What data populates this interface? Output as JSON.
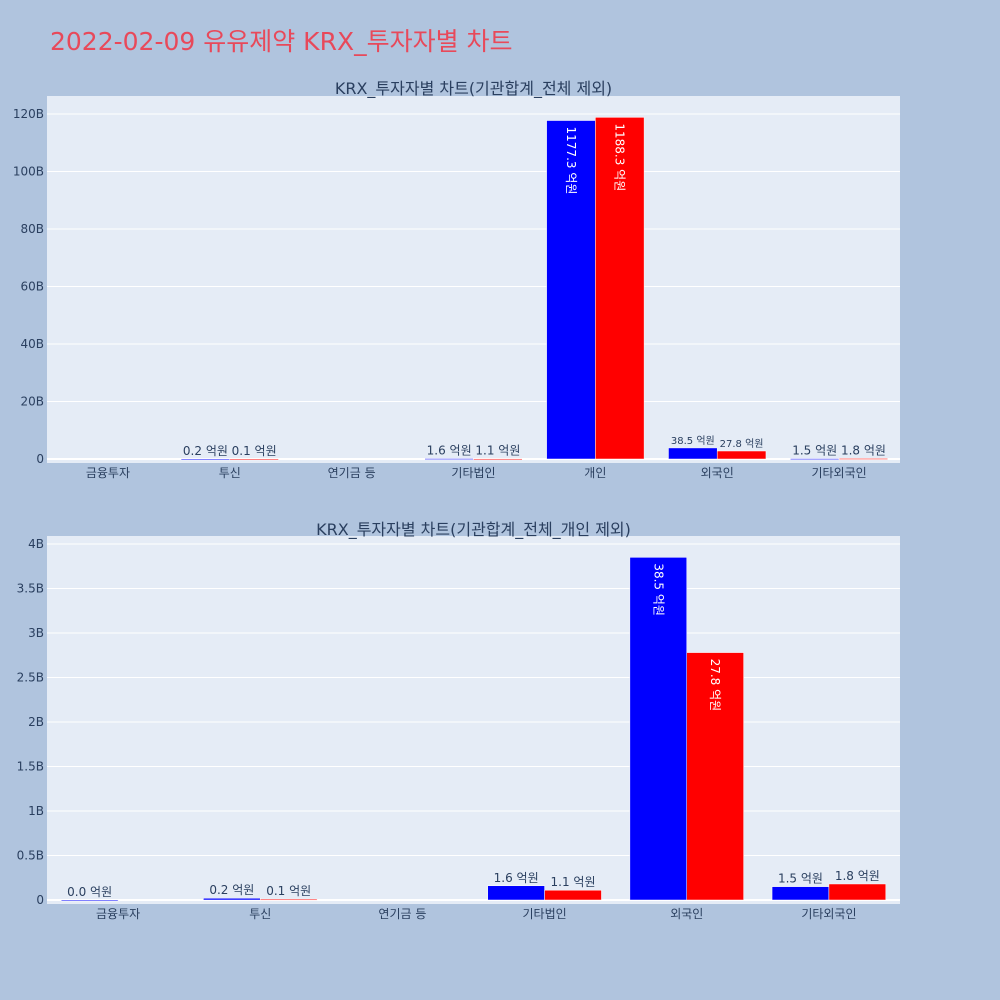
{
  "page": {
    "title": "2022-02-09 유유제약 KRX_투자자별 차트",
    "background": "#b0c4de",
    "title_color": "#e8495a",
    "plot_background": "#e5ecf6"
  },
  "chart_data": [
    {
      "type": "bar",
      "title": "KRX_투자자별 차트(기관합계_전체 제외)",
      "xlabel": "",
      "ylabel": "",
      "categories": [
        "금융투자",
        "투신",
        "연기금 등",
        "기타법인",
        "개인",
        "외국인",
        "기타외국인"
      ],
      "ylim": [
        0,
        125000000000
      ],
      "yticks": [
        {
          "value": 0,
          "label": "0"
        },
        {
          "value": 20000000000,
          "label": "20B"
        },
        {
          "value": 40000000000,
          "label": "40B"
        },
        {
          "value": 60000000000,
          "label": "60B"
        },
        {
          "value": 80000000000,
          "label": "80B"
        },
        {
          "value": 100000000000,
          "label": "100B"
        },
        {
          "value": 120000000000,
          "label": "120B"
        }
      ],
      "grid": true,
      "series": [
        {
          "color": "#0000ff",
          "values": [
            null,
            20000000,
            null,
            160000000,
            117730000000,
            3850000000,
            150000000
          ],
          "labels": [
            "",
            "0.2 억원",
            "",
            "1.6 억원",
            "1177.3 억원",
            "38.5 억원",
            "1.5 억원"
          ]
        },
        {
          "color": "#ff0000",
          "values": [
            null,
            10000000,
            null,
            110000000,
            118830000000,
            2780000000,
            180000000
          ],
          "labels": [
            "",
            "0.1 억원",
            "",
            "1.1 억원",
            "1188.3 억원",
            "27.8 억원",
            "1.8 억원"
          ]
        }
      ]
    },
    {
      "type": "bar",
      "title": "KRX_투자자별 차트(기관합계_전체_개인 제외)",
      "xlabel": "",
      "ylabel": "",
      "categories": [
        "금융투자",
        "투신",
        "연기금 등",
        "기타법인",
        "외국인",
        "기타외국인"
      ],
      "ylim": [
        0,
        4100000000
      ],
      "yticks": [
        {
          "value": 0,
          "label": "0"
        },
        {
          "value": 500000000,
          "label": "0.5B"
        },
        {
          "value": 1000000000,
          "label": "1B"
        },
        {
          "value": 1500000000,
          "label": "1.5B"
        },
        {
          "value": 2000000000,
          "label": "2B"
        },
        {
          "value": 2500000000,
          "label": "2.5B"
        },
        {
          "value": 3000000000,
          "label": "3B"
        },
        {
          "value": 3500000000,
          "label": "3.5B"
        },
        {
          "value": 4000000000,
          "label": "4B"
        }
      ],
      "grid": true,
      "series": [
        {
          "color": "#0000ff",
          "values": [
            0,
            20000000,
            null,
            160000000,
            3850000000,
            150000000
          ],
          "labels": [
            "0.0 억원",
            "0.2 억원",
            "",
            "1.6 억원",
            "38.5 억원",
            "1.5 억원"
          ]
        },
        {
          "color": "#ff0000",
          "values": [
            null,
            10000000,
            null,
            110000000,
            2780000000,
            180000000
          ],
          "labels": [
            "",
            "0.1 억원",
            "",
            "1.1 억원",
            "27.8 억원",
            "1.8 억원"
          ]
        }
      ]
    }
  ]
}
